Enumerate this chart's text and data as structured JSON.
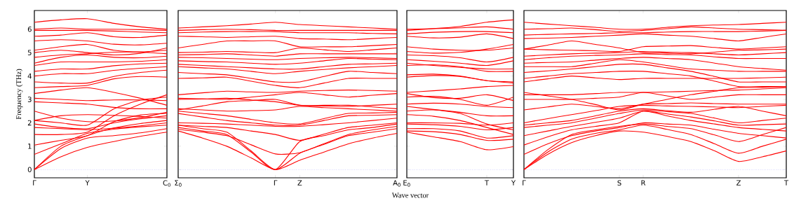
{
  "chart_data": [
    {
      "type": "line",
      "ylabel": "Frequency (THz)",
      "categories": [
        "Γ",
        null,
        "Y",
        null,
        null,
        "C$_{0}$"
      ],
      "ylim": [
        -0.35,
        6.8
      ],
      "yticks": [
        0,
        1,
        2,
        3,
        4,
        5,
        6
      ],
      "ref_lines": [
        {
          "axis": "y",
          "value": 0,
          "color": "#8080ff",
          "line_style": "dotted"
        }
      ],
      "series": [
        {
          "color": "#ff0000",
          "values": [
            0,
            0.55,
            0.95,
            1.2,
            1.42,
            1.6
          ]
        },
        {
          "color": "#ff0000",
          "values": [
            0,
            0.9,
            1.35,
            1.45,
            1.57,
            1.75
          ]
        },
        {
          "color": "#ff0000",
          "values": [
            0,
            1.0,
            1.45,
            1.78,
            1.97,
            2.1
          ]
        },
        {
          "color": "#ff0000",
          "values": [
            0.65,
            1.1,
            1.55,
            1.73,
            1.83,
            1.9
          ]
        },
        {
          "color": "#ff0000",
          "values": [
            1.05,
            1.25,
            1.45,
            2.05,
            2.33,
            2.4
          ]
        },
        {
          "color": "#ff0000",
          "values": [
            1.5,
            1.5,
            1.6,
            2.3,
            2.8,
            3.2
          ]
        },
        {
          "color": "#ff0000",
          "values": [
            1.8,
            1.75,
            1.7,
            1.77,
            1.87,
            2.0
          ]
        },
        {
          "color": "#ff0000",
          "values": [
            1.95,
            1.8,
            1.75,
            2.0,
            2.17,
            2.3
          ]
        },
        {
          "color": "#ff0000",
          "values": [
            2.1,
            2.0,
            1.9,
            2.6,
            2.97,
            3.1
          ]
        },
        {
          "color": "#ff0000",
          "values": [
            2.5,
            2.2,
            2.05,
            2.08,
            2.22,
            2.45
          ]
        },
        {
          "color": "#ff0000",
          "values": [
            2.1,
            2.3,
            2.35,
            2.32,
            2.27,
            2.2
          ]
        },
        {
          "color": "#ff0000",
          "values": [
            2.9,
            2.85,
            2.8,
            2.66,
            2.6,
            2.6
          ]
        },
        {
          "color": "#ff0000",
          "values": [
            3.05,
            3.0,
            2.95,
            2.98,
            2.98,
            2.95
          ]
        },
        {
          "color": "#ff0000",
          "values": [
            3.25,
            3.4,
            3.5,
            3.3,
            3.05,
            2.75
          ]
        },
        {
          "color": "#ff0000",
          "values": [
            3.5,
            3.55,
            3.6,
            3.88,
            3.98,
            3.95
          ]
        },
        {
          "color": "#ff0000",
          "values": [
            3.75,
            3.7,
            3.7,
            3.98,
            4.15,
            4.25
          ]
        },
        {
          "color": "#ff0000",
          "values": [
            4.0,
            4.1,
            4.1,
            4.24,
            4.33,
            4.4
          ]
        },
        {
          "color": "#ff0000",
          "values": [
            4.2,
            4.3,
            4.3,
            4.44,
            4.52,
            4.55
          ]
        },
        {
          "color": "#ff0000",
          "values": [
            4.45,
            4.6,
            4.6,
            4.6,
            4.63,
            4.7
          ]
        },
        {
          "color": "#ff0000",
          "values": [
            4.55,
            4.8,
            4.9,
            4.8,
            4.78,
            4.85
          ]
        },
        {
          "color": "#ff0000",
          "values": [
            4.8,
            4.9,
            4.95,
            5.02,
            5.02,
            4.95
          ]
        },
        {
          "color": "#ff0000",
          "values": [
            5.1,
            5.25,
            5.35,
            5.1,
            5.03,
            5.1
          ]
        },
        {
          "color": "#ff0000",
          "values": [
            5.0,
            5.1,
            5.0,
            4.9,
            4.97,
            5.2
          ]
        },
        {
          "color": "#ff0000",
          "values": [
            5.5,
            5.55,
            5.5,
            5.36,
            5.33,
            5.4
          ]
        },
        {
          "color": "#ff0000",
          "values": [
            5.7,
            5.75,
            5.85,
            5.68,
            5.65,
            5.75
          ]
        },
        {
          "color": "#ff0000",
          "values": [
            5.95,
            5.95,
            5.95,
            5.92,
            5.88,
            5.85
          ]
        },
        {
          "color": "#ff0000",
          "values": [
            6.0,
            6.05,
            6.0,
            6.0,
            5.98,
            5.95
          ]
        },
        {
          "color": "#ff0000",
          "values": [
            6.3,
            6.4,
            6.45,
            6.25,
            6.1,
            6.0
          ]
        }
      ]
    },
    {
      "type": "line",
      "categories": [
        "Σ$_{0}$",
        null,
        null,
        null,
        "Γ",
        "Z",
        null,
        null,
        null,
        "A$_{0}$"
      ],
      "tick_labels": "x",
      "ylim": [
        -0.35,
        6.8
      ],
      "yticks": [
        0,
        1,
        2,
        3,
        4,
        5,
        6
      ],
      "ref_lines": [
        {
          "axis": "y",
          "value": 0,
          "color": "#8080ff",
          "line_style": "dotted"
        }
      ],
      "series": [
        {
          "color": "#ff0000",
          "values": [
            1.65,
            1.35,
            1.0,
            0.5,
            0,
            0.4,
            0.75,
            1.1,
            1.35,
            1.55
          ]
        },
        {
          "color": "#ff0000",
          "values": [
            1.8,
            1.65,
            1.5,
            0.75,
            0,
            1.2,
            1.45,
            1.7,
            1.8,
            1.95
          ]
        },
        {
          "color": "#ff0000",
          "values": [
            1.9,
            1.75,
            1.6,
            0.8,
            0,
            0.7,
            1.08,
            1.45,
            1.6,
            1.75
          ]
        },
        {
          "color": "#ff0000",
          "values": [
            1.72,
            1.6,
            1.45,
            1.06,
            0.67,
            0.72,
            1.11,
            1.5,
            1.7,
            1.85
          ]
        },
        {
          "color": "#ff0000",
          "values": [
            1.9,
            1.85,
            1.8,
            1.65,
            1.5,
            1.25,
            1.52,
            1.8,
            1.9,
            2.0
          ]
        },
        {
          "color": "#ff0000",
          "values": [
            2.0,
            1.98,
            1.95,
            1.9,
            1.85,
            1.85,
            1.92,
            2.0,
            2.1,
            2.2
          ]
        },
        {
          "color": "#ff0000",
          "values": [
            2.4,
            2.25,
            2.1,
            2.0,
            1.9,
            1.9,
            2.1,
            2.3,
            2.32,
            2.35
          ]
        },
        {
          "color": "#ff0000",
          "values": [
            2.5,
            2.4,
            2.3,
            2.15,
            2.0,
            1.95,
            2.18,
            2.4,
            2.42,
            2.45
          ]
        },
        {
          "color": "#ff0000",
          "values": [
            2.6,
            2.55,
            2.5,
            2.52,
            2.55,
            2.7,
            2.65,
            2.6,
            2.55,
            2.5
          ]
        },
        {
          "color": "#ff0000",
          "values": [
            2.55,
            2.72,
            2.9,
            2.95,
            3.0,
            2.75,
            2.75,
            2.75,
            2.68,
            2.6
          ]
        },
        {
          "color": "#ff0000",
          "values": [
            3.0,
            3.02,
            3.05,
            2.98,
            2.9,
            2.75,
            2.72,
            2.7,
            2.75,
            2.8
          ]
        },
        {
          "color": "#ff0000",
          "values": [
            3.05,
            3.02,
            3.0,
            3.1,
            3.2,
            3.3,
            3.2,
            3.1,
            3.18,
            3.25
          ]
        },
        {
          "color": "#ff0000",
          "values": [
            3.2,
            3.28,
            3.35,
            3.32,
            3.3,
            3.35,
            3.38,
            3.4,
            3.38,
            3.35
          ]
        },
        {
          "color": "#ff0000",
          "values": [
            3.9,
            3.92,
            3.95,
            3.78,
            3.6,
            3.5,
            3.7,
            3.9,
            3.9,
            3.9
          ]
        },
        {
          "color": "#ff0000",
          "values": [
            4.15,
            4.1,
            4.05,
            3.9,
            3.75,
            3.75,
            3.98,
            4.2,
            4.15,
            4.1
          ]
        },
        {
          "color": "#ff0000",
          "values": [
            4.4,
            4.35,
            4.3,
            4.2,
            4.1,
            4.2,
            4.28,
            4.35,
            4.4,
            4.45
          ]
        },
        {
          "color": "#ff0000",
          "values": [
            4.5,
            4.45,
            4.4,
            4.35,
            4.3,
            4.3,
            4.4,
            4.5,
            4.52,
            4.55
          ]
        },
        {
          "color": "#ff0000",
          "values": [
            4.65,
            4.62,
            4.6,
            4.55,
            4.5,
            4.55,
            4.65,
            4.75,
            4.72,
            4.7
          ]
        },
        {
          "color": "#ff0000",
          "values": [
            4.8,
            4.78,
            4.75,
            4.72,
            4.7,
            4.75,
            4.78,
            4.8,
            4.78,
            4.75
          ]
        },
        {
          "color": "#ff0000",
          "values": [
            4.9,
            4.92,
            4.95,
            4.9,
            4.85,
            4.95,
            4.95,
            4.95,
            4.95,
            4.95
          ]
        },
        {
          "color": "#ff0000",
          "values": [
            5.0,
            5.02,
            5.05,
            5.02,
            5.0,
            5.2,
            5.12,
            5.05,
            5.12,
            5.2
          ]
        },
        {
          "color": "#ff0000",
          "values": [
            5.2,
            5.35,
            5.5,
            5.5,
            5.5,
            5.25,
            5.25,
            5.25,
            5.3,
            5.35
          ]
        },
        {
          "color": "#ff0000",
          "values": [
            5.7,
            5.68,
            5.65,
            5.68,
            5.7,
            5.6,
            5.58,
            5.55,
            5.6,
            5.65
          ]
        },
        {
          "color": "#ff0000",
          "values": [
            5.85,
            5.88,
            5.9,
            5.9,
            5.9,
            5.85,
            5.85,
            5.85,
            5.82,
            5.8
          ]
        },
        {
          "color": "#ff0000",
          "values": [
            5.95,
            5.98,
            6.0,
            5.98,
            5.95,
            5.95,
            5.95,
            5.95,
            5.95,
            5.95
          ]
        },
        {
          "color": "#ff0000",
          "values": [
            6.05,
            6.1,
            6.15,
            6.22,
            6.3,
            6.2,
            6.15,
            6.1,
            6.05,
            6.0
          ]
        }
      ]
    },
    {
      "type": "line",
      "xlabel": "Wave vector",
      "categories": [
        "E$_{0}$",
        null,
        null,
        "T",
        "Y"
      ],
      "tick_labels": "x",
      "ylim": [
        -0.35,
        6.8
      ],
      "yticks": [
        0,
        1,
        2,
        3,
        4,
        5,
        6
      ],
      "ref_lines": [
        {
          "axis": "y",
          "value": 0,
          "color": "#8080ff",
          "line_style": "dotted"
        }
      ],
      "series": [
        {
          "color": "#ff0000",
          "values": [
            1.6,
            1.4,
            1.2,
            0.85,
            0.98
          ]
        },
        {
          "color": "#ff0000",
          "values": [
            1.65,
            1.62,
            1.5,
            1.25,
            1.3
          ]
        },
        {
          "color": "#ff0000",
          "values": [
            1.75,
            1.75,
            1.65,
            1.35,
            1.45
          ]
        },
        {
          "color": "#ff0000",
          "values": [
            1.95,
            1.92,
            1.85,
            1.7,
            1.8
          ]
        },
        {
          "color": "#ff0000",
          "values": [
            2.0,
            2.0,
            1.98,
            1.9,
            2.0
          ]
        },
        {
          "color": "#ff0000",
          "values": [
            2.35,
            2.28,
            2.1,
            1.8,
            1.5
          ]
        },
        {
          "color": "#ff0000",
          "values": [
            2.5,
            2.55,
            2.4,
            1.95,
            1.7
          ]
        },
        {
          "color": "#ff0000",
          "values": [
            2.7,
            2.57,
            2.45,
            2.3,
            2.3
          ]
        },
        {
          "color": "#ff0000",
          "values": [
            2.8,
            2.84,
            2.8,
            2.7,
            2.65
          ]
        },
        {
          "color": "#ff0000",
          "values": [
            3.25,
            3.08,
            3.05,
            3.2,
            2.95
          ]
        },
        {
          "color": "#ff0000",
          "values": [
            3.1,
            3.13,
            3.0,
            2.75,
            3.1
          ]
        },
        {
          "color": "#ff0000",
          "values": [
            3.3,
            3.37,
            3.45,
            3.55,
            3.6
          ]
        },
        {
          "color": "#ff0000",
          "values": [
            3.95,
            4.02,
            3.98,
            3.8,
            3.7
          ]
        },
        {
          "color": "#ff0000",
          "values": [
            4.05,
            4.08,
            4.0,
            3.8,
            3.75
          ]
        },
        {
          "color": "#ff0000",
          "values": [
            4.45,
            4.48,
            4.4,
            4.2,
            4.2
          ]
        },
        {
          "color": "#ff0000",
          "values": [
            4.55,
            4.45,
            4.37,
            4.3,
            4.3
          ]
        },
        {
          "color": "#ff0000",
          "values": [
            4.7,
            4.63,
            4.55,
            4.45,
            4.65
          ]
        },
        {
          "color": "#ff0000",
          "values": [
            4.9,
            4.87,
            4.78,
            4.6,
            4.8
          ]
        },
        {
          "color": "#ff0000",
          "values": [
            5.25,
            5.15,
            5.1,
            5.1,
            5.2
          ]
        },
        {
          "color": "#ff0000",
          "values": [
            5.05,
            4.98,
            5.01,
            5.15,
            5.35
          ]
        },
        {
          "color": "#ff0000",
          "values": [
            5.7,
            5.63,
            5.66,
            5.8,
            5.6
          ]
        },
        {
          "color": "#ff0000",
          "values": [
            5.8,
            5.87,
            5.9,
            5.9,
            5.85
          ]
        },
        {
          "color": "#ff0000",
          "values": [
            5.95,
            6.02,
            6.06,
            6.1,
            6.0
          ]
        },
        {
          "color": "#ff0000",
          "values": [
            6.0,
            6.03,
            6.12,
            6.3,
            6.4
          ]
        }
      ]
    },
    {
      "type": "line",
      "categories": [
        "Γ",
        null,
        null,
        null,
        "S",
        "R",
        null,
        null,
        null,
        "Z",
        null,
        "T"
      ],
      "tick_labels": "x",
      "ylim": [
        -0.35,
        6.8
      ],
      "yticks": [
        0,
        1,
        2,
        3,
        4,
        5,
        6
      ],
      "ref_lines": [
        {
          "axis": "y",
          "value": 0,
          "color": "#8080ff",
          "line_style": "dotted"
        }
      ],
      "series": [
        {
          "color": "#ff0000",
          "values": [
            0,
            0.65,
            1.15,
            1.45,
            1.65,
            1.6,
            1.42,
            1.2,
            0.8,
            0.35,
            0.55,
            0.8
          ]
        },
        {
          "color": "#ff0000",
          "values": [
            0,
            0.75,
            1.3,
            1.55,
            1.7,
            1.9,
            1.72,
            1.5,
            1.1,
            0.7,
            1.0,
            1.3
          ]
        },
        {
          "color": "#ff0000",
          "values": [
            0,
            0.85,
            1.5,
            1.7,
            1.85,
            1.95,
            1.85,
            1.75,
            1.48,
            1.2,
            1.5,
            1.8
          ]
        },
        {
          "color": "#ff0000",
          "values": [
            0.65,
            1.1,
            1.45,
            1.65,
            1.8,
            2.0,
            1.95,
            1.9,
            1.72,
            1.55,
            1.45,
            1.35
          ]
        },
        {
          "color": "#ff0000",
          "values": [
            1.05,
            1.4,
            1.7,
            1.85,
            2.0,
            2.5,
            2.3,
            2.1,
            1.95,
            1.8,
            1.72,
            1.65
          ]
        },
        {
          "color": "#ff0000",
          "values": [
            1.45,
            1.65,
            1.85,
            2.02,
            2.2,
            2.5,
            2.38,
            2.25,
            2.08,
            1.9,
            1.92,
            1.95
          ]
        },
        {
          "color": "#ff0000",
          "values": [
            1.8,
            1.9,
            2.0,
            2.2,
            2.4,
            2.55,
            2.48,
            2.4,
            2.2,
            2.0,
            2.1,
            2.2
          ]
        },
        {
          "color": "#ff0000",
          "values": [
            1.9,
            2.0,
            2.1,
            2.3,
            2.5,
            2.6,
            2.52,
            2.45,
            2.58,
            2.7,
            2.5,
            2.3
          ]
        },
        {
          "color": "#ff0000",
          "values": [
            2.0,
            2.18,
            2.35,
            2.52,
            2.7,
            2.75,
            2.72,
            2.7,
            2.68,
            2.65,
            2.7,
            2.75
          ]
        },
        {
          "color": "#ff0000",
          "values": [
            2.55,
            2.68,
            2.8,
            2.7,
            2.6,
            2.8,
            2.82,
            2.85,
            2.82,
            2.8,
            2.8,
            2.8
          ]
        },
        {
          "color": "#ff0000",
          "values": [
            3.0,
            3.0,
            3.0,
            3.05,
            3.1,
            3.3,
            3.15,
            3.0,
            3.1,
            3.2,
            3.2,
            3.2
          ]
        },
        {
          "color": "#ff0000",
          "values": [
            3.2,
            3.2,
            3.2,
            3.25,
            3.3,
            3.3,
            3.32,
            3.35,
            3.38,
            3.4,
            3.45,
            3.5
          ]
        },
        {
          "color": "#ff0000",
          "values": [
            3.3,
            3.15,
            3.0,
            2.78,
            2.55,
            2.8,
            3.0,
            3.2,
            3.35,
            3.5,
            3.52,
            3.55
          ]
        },
        {
          "color": "#ff0000",
          "values": [
            3.75,
            3.88,
            4.0,
            3.92,
            3.85,
            3.9,
            3.9,
            3.9,
            3.9,
            3.9,
            3.92,
            3.95
          ]
        },
        {
          "color": "#ff0000",
          "values": [
            3.9,
            4.0,
            4.1,
            4.15,
            4.2,
            4.2,
            4.1,
            4.0,
            3.78,
            3.55,
            3.55,
            3.55
          ]
        },
        {
          "color": "#ff0000",
          "values": [
            4.15,
            4.22,
            4.3,
            4.4,
            4.5,
            4.5,
            4.35,
            4.2,
            3.98,
            3.75,
            3.75,
            3.75
          ]
        },
        {
          "color": "#ff0000",
          "values": [
            4.4,
            4.4,
            4.4,
            4.55,
            4.7,
            4.6,
            4.45,
            4.3,
            4.25,
            4.2,
            4.2,
            4.2
          ]
        },
        {
          "color": "#ff0000",
          "values": [
            4.55,
            4.58,
            4.6,
            4.68,
            4.75,
            4.8,
            4.75,
            4.7,
            4.55,
            4.4,
            4.32,
            4.25
          ]
        },
        {
          "color": "#ff0000",
          "values": [
            4.7,
            4.78,
            4.85,
            4.88,
            4.9,
            4.95,
            4.92,
            4.9,
            4.82,
            4.75,
            4.75,
            4.75
          ]
        },
        {
          "color": "#ff0000",
          "values": [
            4.85,
            4.9,
            4.95,
            4.98,
            5.0,
            5.05,
            5.02,
            5.0,
            4.95,
            4.9,
            4.95,
            5.0
          ]
        },
        {
          "color": "#ff0000",
          "values": [
            5.15,
            5.12,
            5.1,
            5.08,
            5.05,
            5.25,
            5.28,
            5.3,
            5.22,
            5.15,
            5.2,
            5.25
          ]
        },
        {
          "color": "#ff0000",
          "values": [
            5.15,
            5.32,
            5.5,
            5.35,
            5.2,
            5.0,
            4.98,
            4.95,
            5.02,
            5.1,
            5.12,
            5.15
          ]
        },
        {
          "color": "#ff0000",
          "values": [
            5.6,
            5.62,
            5.65,
            5.7,
            5.75,
            5.8,
            5.75,
            5.7,
            5.6,
            5.5,
            5.65,
            5.8
          ]
        },
        {
          "color": "#ff0000",
          "values": [
            5.75,
            5.78,
            5.8,
            5.82,
            5.85,
            5.85,
            5.88,
            5.9,
            5.9,
            5.9,
            5.92,
            5.95
          ]
        },
        {
          "color": "#ff0000",
          "values": [
            6.0,
            6.02,
            6.05,
            5.98,
            5.9,
            5.95,
            6.02,
            6.1,
            6.05,
            6.0,
            5.98,
            5.95
          ]
        },
        {
          "color": "#ff0000",
          "values": [
            6.3,
            6.22,
            6.15,
            6.08,
            6.0,
            6.0,
            6.08,
            6.15,
            6.18,
            6.2,
            6.25,
            6.3
          ]
        }
      ]
    }
  ]
}
